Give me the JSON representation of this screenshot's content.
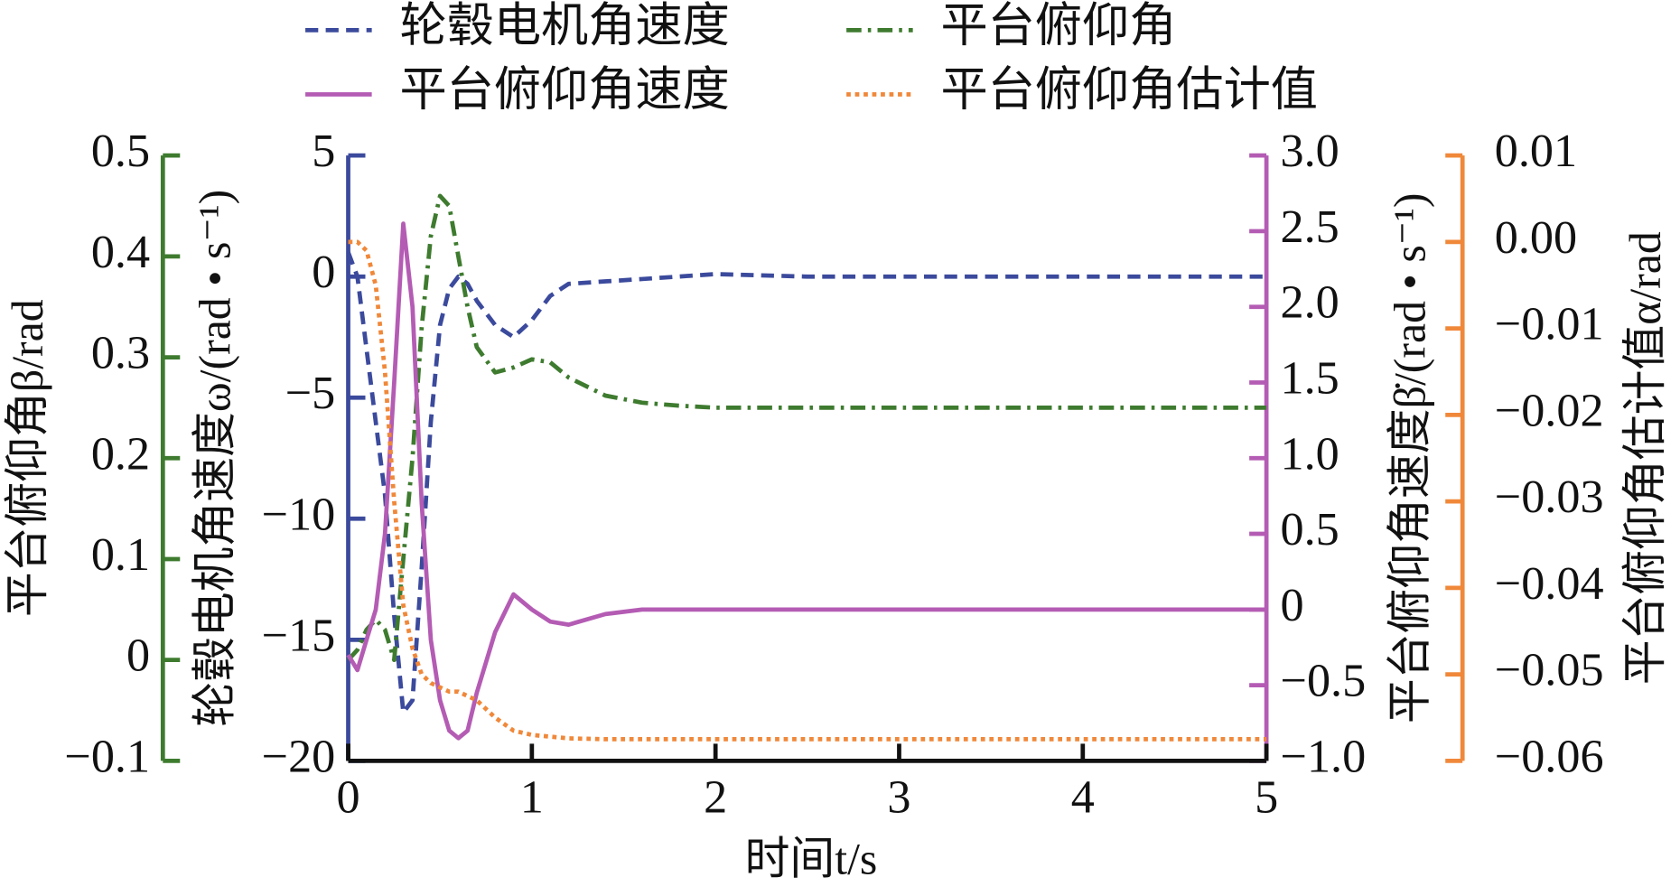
{
  "chart_data": {
    "type": "line",
    "x": [
      0,
      0.05,
      0.1,
      0.15,
      0.2,
      0.25,
      0.3,
      0.35,
      0.4,
      0.45,
      0.5,
      0.55,
      0.6,
      0.65,
      0.7,
      0.8,
      0.9,
      1.0,
      1.1,
      1.2,
      1.4,
      1.6,
      1.8,
      2.0,
      2.5,
      3,
      3.5,
      4,
      4.5,
      5
    ],
    "xlabel": "时间t/s",
    "xlim": [
      0,
      5
    ],
    "xticks": [
      0,
      1,
      2,
      3,
      4,
      5
    ],
    "ylabel": "轮毂电机角速度ω/(rad • s⁻¹)",
    "ylim": [
      -20,
      5
    ],
    "yticks": [
      {
        "value": -20,
        "label": "−20"
      },
      {
        "value": -15,
        "label": "−15"
      },
      {
        "value": -10,
        "label": "−10"
      },
      {
        "value": -5,
        "label": "−5"
      },
      0,
      5
    ],
    "y2label": "平台俯仰角速度β̇/(rad • s⁻¹)",
    "y2lim": [
      -1,
      3
    ],
    "y2ticks": [
      {
        "value": -1,
        "label": "−1.0"
      },
      {
        "value": -0.5,
        "label": "−0.5"
      },
      0,
      0.5,
      {
        "value": 1,
        "label": "1.0"
      },
      1.5,
      {
        "value": 2,
        "label": "2.0"
      },
      2.5,
      {
        "value": 3,
        "label": "3.0"
      }
    ],
    "y3label": "平台俯仰角β/rad",
    "y3lim": [
      -0.1,
      0.5
    ],
    "y3ticks": [
      {
        "value": -0.1,
        "label": "−0.1"
      },
      0,
      0.1,
      0.2,
      0.3,
      0.4,
      0.5
    ],
    "y4label": "平台俯仰角估计值α/rad",
    "y4lim": [
      -0.06,
      0.01
    ],
    "y4ticks": [
      {
        "value": -0.06,
        "label": "−0.06"
      },
      {
        "value": -0.05,
        "label": "−0.05"
      },
      {
        "value": -0.04,
        "label": "−0.04"
      },
      {
        "value": -0.03,
        "label": "−0.03"
      },
      {
        "value": -0.02,
        "label": "−0.02"
      },
      {
        "value": -0.01,
        "label": "−0.01"
      },
      {
        "value": 0,
        "label": "0.00"
      },
      0.01
    ],
    "series": [
      {
        "name": "轮毂电机角速度",
        "color": "#3b4a9c",
        "style": "dashed",
        "axis": "y",
        "values": [
          1,
          0,
          -3,
          -6,
          -9,
          -14,
          -18,
          -17.5,
          -12,
          -6,
          -2,
          -0.5,
          0,
          -0.3,
          -1,
          -2,
          -2.5,
          -1.8,
          -0.8,
          -0.3,
          -0.2,
          -0.1,
          0,
          0.1,
          0,
          0,
          0,
          0,
          0,
          0
        ]
      },
      {
        "name": "平台俯仰角",
        "color": "#3e7b2f",
        "style": "dashdot",
        "axis": "y3",
        "values": [
          0,
          0.01,
          0.03,
          0.04,
          0.03,
          0.0,
          0.1,
          0.2,
          0.33,
          0.42,
          0.46,
          0.45,
          0.4,
          0.35,
          0.31,
          0.285,
          0.29,
          0.298,
          0.295,
          0.28,
          0.262,
          0.255,
          0.252,
          0.25,
          0.25,
          0.25,
          0.25,
          0.25,
          0.25,
          0.25
        ]
      },
      {
        "name": "平台俯仰角速度",
        "color": "#b45cb4",
        "style": "solid",
        "axis": "y2",
        "values": [
          -0.3,
          -0.4,
          -0.2,
          0,
          0.5,
          1.5,
          2.55,
          2.0,
          0.7,
          -0.2,
          -0.6,
          -0.8,
          -0.85,
          -0.8,
          -0.55,
          -0.15,
          0.1,
          0.0,
          -0.08,
          -0.1,
          -0.03,
          0,
          0,
          0,
          0,
          0,
          0,
          0,
          0,
          0
        ]
      },
      {
        "name": "平台俯仰角估计值",
        "color": "#f0883a",
        "style": "dotted",
        "axis": "y4",
        "values": [
          0,
          0,
          -0.001,
          -0.005,
          -0.015,
          -0.03,
          -0.042,
          -0.047,
          -0.05,
          -0.051,
          -0.0515,
          -0.052,
          -0.052,
          -0.0525,
          -0.053,
          -0.055,
          -0.0565,
          -0.057,
          -0.0572,
          -0.0574,
          -0.0575,
          -0.0575,
          -0.0575,
          -0.0575,
          -0.0575,
          -0.0575,
          -0.0575,
          -0.0575,
          -0.0575,
          -0.0575
        ]
      }
    ]
  }
}
